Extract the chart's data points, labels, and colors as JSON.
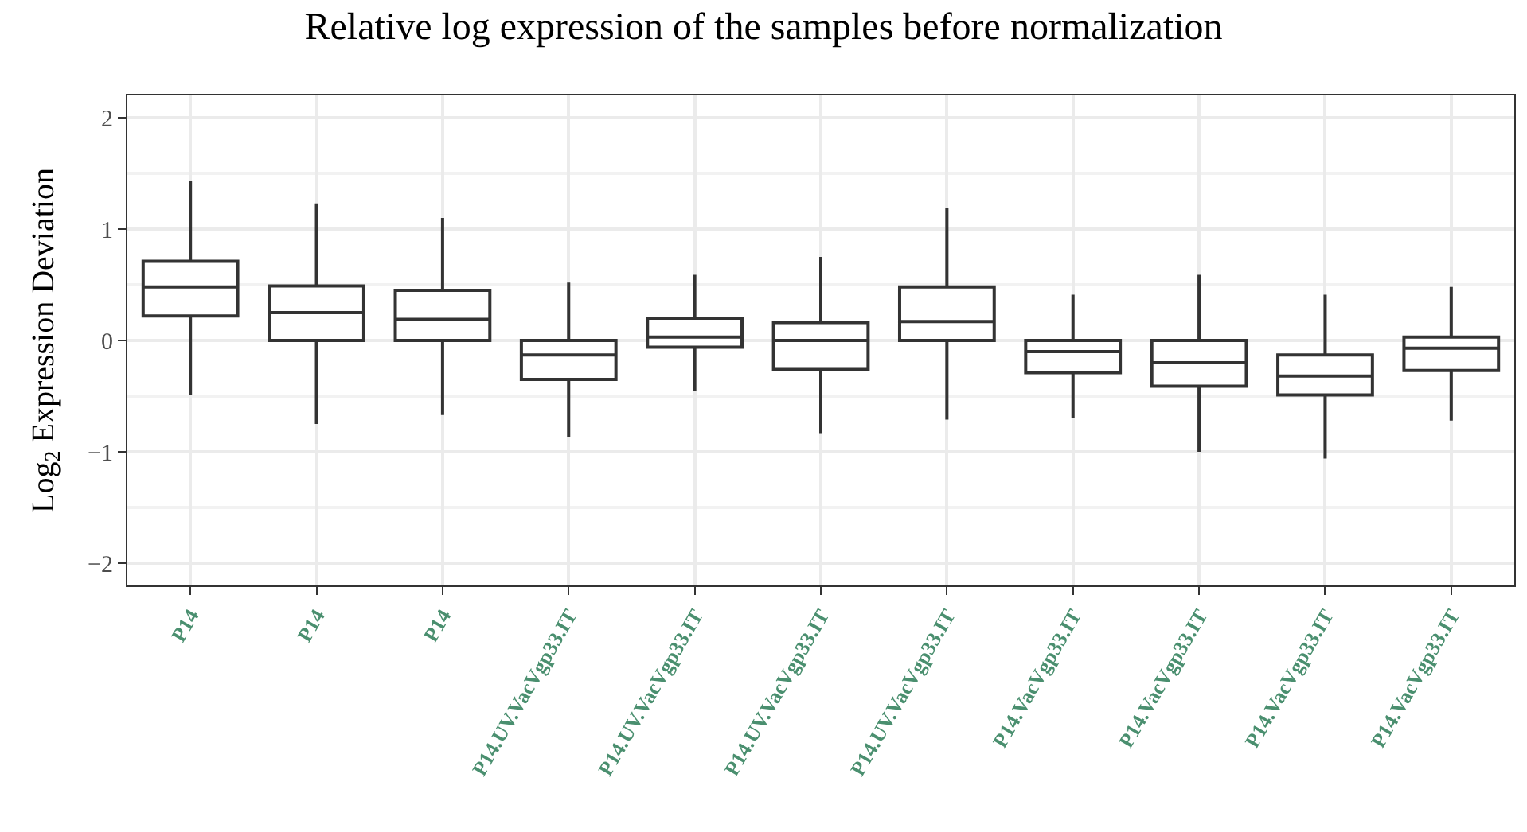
{
  "chart_data": {
    "type": "box",
    "title": "Relative log expression of the samples before normalization",
    "ylabel": "Log$_{2}$ Expression Deviation",
    "categories": [
      "P14",
      "P14",
      "P14",
      "P14.UV.VacVgp33.IT",
      "P14.UV.VacVgp33.IT",
      "P14.UV.VacVgp33.IT",
      "P14.UV.VacVgp33.IT",
      "P14.VacVgp33.IT",
      "P14.VacVgp33.IT",
      "P14.VacVgp33.IT",
      "P14.VacVgp33.IT"
    ],
    "boxes": [
      {
        "low": -0.49,
        "q1": 0.22,
        "median": 0.48,
        "q3": 0.71,
        "high": 1.43
      },
      {
        "low": -0.75,
        "q1": 0.0,
        "median": 0.25,
        "q3": 0.49,
        "high": 1.23
      },
      {
        "low": -0.67,
        "q1": 0.0,
        "median": 0.19,
        "q3": 0.45,
        "high": 1.1
      },
      {
        "low": -0.87,
        "q1": -0.35,
        "median": -0.13,
        "q3": 0.0,
        "high": 0.52
      },
      {
        "low": -0.45,
        "q1": -0.06,
        "median": 0.03,
        "q3": 0.2,
        "high": 0.59
      },
      {
        "low": -0.84,
        "q1": -0.26,
        "median": 0.0,
        "q3": 0.16,
        "high": 0.75
      },
      {
        "low": -0.71,
        "q1": 0.0,
        "median": 0.17,
        "q3": 0.48,
        "high": 1.19
      },
      {
        "low": -0.7,
        "q1": -0.29,
        "median": -0.1,
        "q3": 0.0,
        "high": 0.41
      },
      {
        "low": -1.0,
        "q1": -0.41,
        "median": -0.2,
        "q3": 0.0,
        "high": 0.59
      },
      {
        "low": -1.06,
        "q1": -0.49,
        "median": -0.32,
        "q3": -0.13,
        "high": 0.41
      },
      {
        "low": -0.72,
        "q1": -0.27,
        "median": -0.07,
        "q3": 0.03,
        "high": 0.48
      }
    ],
    "color": "#333333",
    "ylim": [
      -2.2,
      2.2
    ],
    "yticks": [
      -2,
      -1,
      0,
      1,
      2
    ],
    "grid": true
  }
}
